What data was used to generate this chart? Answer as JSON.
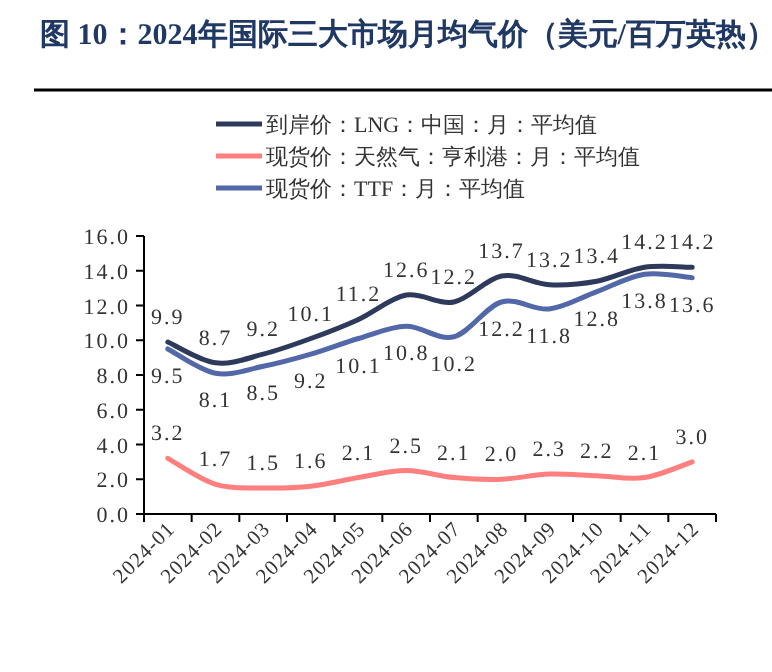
{
  "chart_data": {
    "type": "line",
    "title": "图 10：2024年国际三大市场月均气价（美元/百万英热）",
    "categories": [
      "2024-01",
      "2024-02",
      "2024-03",
      "2024-04",
      "2024-05",
      "2024-06",
      "2024-07",
      "2024-08",
      "2024-09",
      "2024-10",
      "2024-11",
      "2024-12"
    ],
    "series": [
      {
        "name": "到岸价：LNG：中国：月：平均值",
        "color": "#2e3a5c",
        "values": [
          9.9,
          8.7,
          9.2,
          10.1,
          11.2,
          12.6,
          12.2,
          13.7,
          13.2,
          13.4,
          14.2,
          14.2
        ],
        "value_labels": [
          "9.9",
          "8.7",
          "9.2",
          "10.1",
          "11.2",
          "12.6",
          "12.2",
          "13.7",
          "13.2",
          "13.4",
          "14.2",
          "14.2"
        ]
      },
      {
        "name": "现货价：天然气：亨利港：月：平均值",
        "color": "#ff7f7f",
        "values": [
          3.2,
          1.7,
          1.5,
          1.6,
          2.1,
          2.5,
          2.1,
          2.0,
          2.3,
          2.2,
          2.1,
          3.0
        ],
        "value_labels": [
          "3.2",
          "1.7",
          "1.5",
          "1.6",
          "2.1",
          "2.5",
          "2.1",
          "2.0",
          "2.3",
          "2.2",
          "2.1",
          "3.0"
        ]
      },
      {
        "name": "现货价：TTF：月：平均值",
        "color": "#5368a8",
        "values": [
          9.5,
          8.1,
          8.5,
          9.2,
          10.1,
          10.8,
          10.2,
          12.2,
          11.8,
          12.8,
          13.8,
          13.6
        ],
        "value_labels": [
          "9.5",
          "8.1",
          "8.5",
          "9.2",
          "10.1",
          "10.8",
          "10.2",
          "12.2",
          "11.8",
          "12.8",
          "13.8",
          "13.6"
        ]
      }
    ],
    "ylim": [
      0,
      16
    ],
    "yticks": [
      {
        "value": 0,
        "label": "0.0"
      },
      {
        "value": 2,
        "label": "2.0"
      },
      {
        "value": 4,
        "label": "4.0"
      },
      {
        "value": 6,
        "label": "6.0"
      },
      {
        "value": 8,
        "label": "8.0"
      },
      {
        "value": 10,
        "label": "10.0"
      },
      {
        "value": 12,
        "label": "12.0"
      },
      {
        "value": 14,
        "label": "14.0"
      },
      {
        "value": 16,
        "label": "16.0"
      }
    ],
    "grid": false,
    "legend": "top",
    "marker": "none",
    "line_style": "solid"
  }
}
